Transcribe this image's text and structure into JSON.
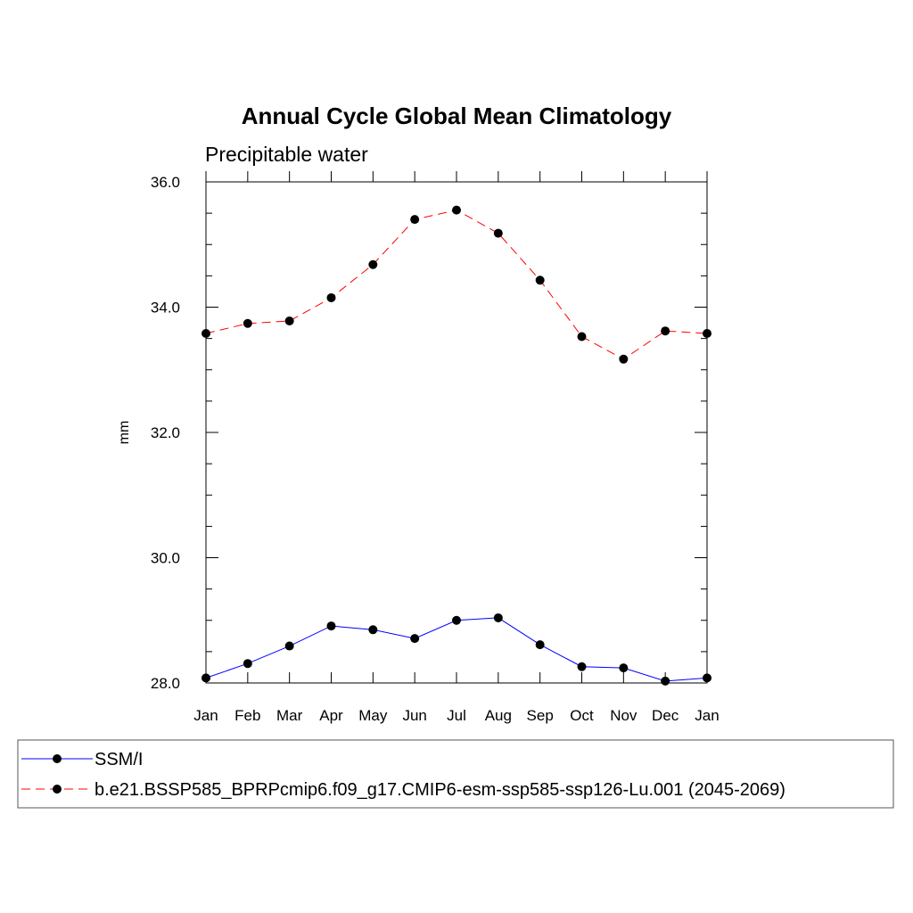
{
  "chart_data": {
    "type": "line",
    "title": "Annual Cycle Global Mean Climatology",
    "subtitle": "Precipitable water",
    "xlabel": "",
    "ylabel": "mm",
    "categories": [
      "Jan",
      "Feb",
      "Mar",
      "Apr",
      "May",
      "Jun",
      "Jul",
      "Aug",
      "Sep",
      "Oct",
      "Nov",
      "Dec",
      "Jan"
    ],
    "ylim": [
      28.0,
      36.0
    ],
    "yticks": [
      "28.0",
      "30.0",
      "32.0",
      "34.0",
      "36.0"
    ],
    "yminor_step": 0.5,
    "grid": false,
    "legend_position": "bottom",
    "series": [
      {
        "name": "SSM/I",
        "color": "#0000ff",
        "line_style": "solid",
        "marker": "filled-circle",
        "values": [
          28.08,
          28.31,
          28.59,
          28.91,
          28.85,
          28.71,
          29.0,
          29.04,
          28.61,
          28.26,
          28.24,
          28.03,
          28.08
        ]
      },
      {
        "name": "b.e21.BSSP585_BPRPcmip6.f09_g17.CMIP6-esm-ssp585-ssp126-Lu.001 (2045-2069)",
        "color": "#ff0000",
        "line_style": "dashed",
        "marker": "filled-circle",
        "values": [
          33.58,
          33.74,
          33.78,
          34.15,
          34.68,
          35.4,
          35.55,
          35.18,
          34.43,
          33.53,
          33.17,
          33.62,
          33.58
        ]
      }
    ]
  }
}
